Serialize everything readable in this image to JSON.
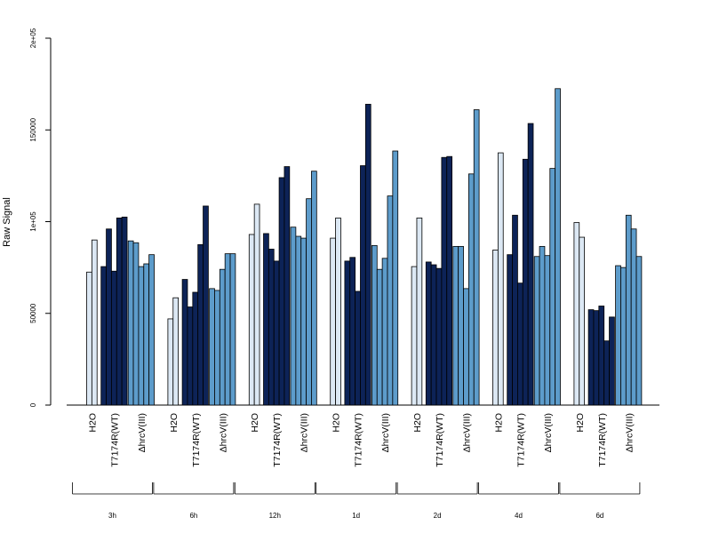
{
  "chart_data": {
    "type": "bar",
    "ylabel": "Raw Signal",
    "ylim": [
      0,
      200000
    ],
    "yticks": [
      {
        "value": 0,
        "label": "0"
      },
      {
        "value": 50000,
        "label": "50000"
      },
      {
        "value": 100000,
        "label": "1e+05"
      },
      {
        "value": 150000,
        "label": "150000"
      },
      {
        "value": 200000,
        "label": "2e+05"
      }
    ],
    "group_labels": [
      "H2O",
      "T7174R(WT)",
      "ΔhrcV(III)"
    ],
    "group_colors": [
      "#dce8f4",
      "#0d2357",
      "#5d9ccb"
    ],
    "timepoints": [
      "3h",
      "6h",
      "12h",
      "1d",
      "2d",
      "4d",
      "6d"
    ],
    "series": [
      {
        "timepoint": "3h",
        "h2o": [
          72500,
          90000
        ],
        "wt": [
          75500,
          96000,
          73000,
          102000,
          102500
        ],
        "hrcv": [
          89500,
          88500,
          75500,
          77000,
          82000
        ]
      },
      {
        "timepoint": "6h",
        "h2o": [
          47000,
          58500
        ],
        "wt": [
          68500,
          53500,
          61500,
          87500,
          108500
        ],
        "hrcv": [
          63500,
          62500,
          74000,
          82500,
          82500
        ]
      },
      {
        "timepoint": "12h",
        "h2o": [
          93000,
          109500
        ],
        "wt": [
          93500,
          85000,
          78500,
          124000,
          130000
        ],
        "hrcv": [
          97000,
          92000,
          91000,
          112500,
          127500
        ]
      },
      {
        "timepoint": "1d",
        "h2o": [
          91000,
          102000
        ],
        "wt": [
          78500,
          80500,
          62000,
          130500,
          164000
        ],
        "hrcv": [
          87000,
          74000,
          80000,
          114000,
          138500
        ]
      },
      {
        "timepoint": "2d",
        "h2o": [
          75500,
          102000
        ],
        "wt": [
          78000,
          76500,
          74500,
          135000,
          135500
        ],
        "hrcv": [
          86500,
          86500,
          63500,
          126000,
          161000
        ]
      },
      {
        "timepoint": "4d",
        "h2o": [
          84500,
          137500
        ],
        "wt": [
          82000,
          103500,
          66500,
          134000,
          153500
        ],
        "hrcv": [
          81000,
          86500,
          81500,
          129000,
          172500
        ]
      },
      {
        "timepoint": "6d",
        "h2o": [
          99500,
          91500
        ],
        "wt": [
          52000,
          51500,
          54000,
          35000,
          48000
        ],
        "hrcv": [
          76000,
          75000,
          103500,
          96000,
          81000
        ]
      }
    ]
  }
}
